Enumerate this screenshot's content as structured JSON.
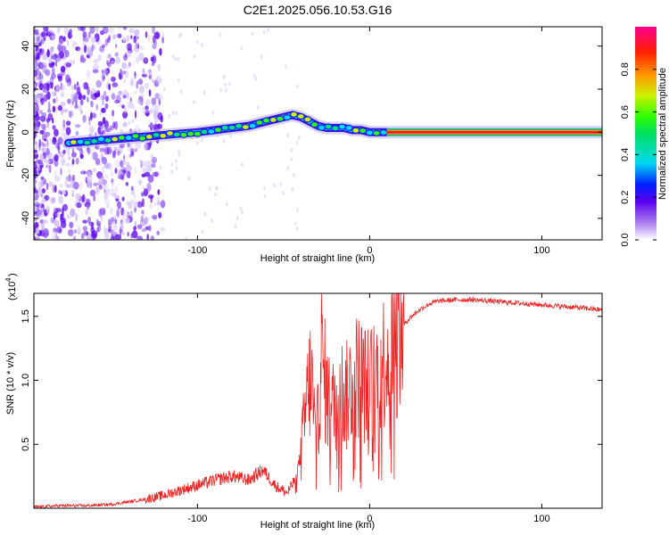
{
  "title": "C2E1.2025.056.10.53.G16",
  "chart_data": [
    {
      "type": "heatmap",
      "xlabel": "Height of straight line (km)",
      "ylabel": "Frequency (Hz)",
      "xlim": [
        -195,
        135
      ],
      "ylim": [
        -50,
        49
      ],
      "xticks": [
        -100,
        0,
        100
      ],
      "yticks": [
        -40,
        -20,
        0,
        20,
        40
      ],
      "colorbar": {
        "label": "Normalized spectral amplitude",
        "range": [
          0,
          1
        ],
        "ticks": [
          0.0,
          0.2,
          0.4,
          0.6,
          0.8
        ]
      },
      "track": {
        "x": [
          -175,
          -160,
          -145,
          -130,
          -115,
          -100,
          -90,
          -80,
          -70,
          -60,
          -55,
          -50,
          -45,
          -40,
          -35,
          -30,
          -25,
          -20,
          -15,
          -10,
          -5,
          0,
          5,
          10,
          135
        ],
        "y": [
          -5,
          -4,
          -3,
          -2,
          -1,
          0,
          1,
          2,
          3,
          5,
          6,
          7,
          8,
          7,
          5,
          3,
          2,
          2,
          2,
          1,
          1,
          0,
          0,
          0,
          0
        ]
      }
    },
    {
      "type": "line",
      "xlabel": "Height of straight line (km)",
      "ylabel": "SNR (10 * v/v)",
      "scale_label": "(x10",
      "scale_exponent": "4",
      "xlim": [
        -195,
        135
      ],
      "ylim": [
        0,
        1.68
      ],
      "xticks": [
        -100,
        0,
        100
      ],
      "yticks": [
        0.5,
        1.0,
        1.5
      ],
      "ytick_labels": [
        "0.5",
        "1.0",
        "1.5"
      ],
      "series": [
        {
          "color": "#ee2222",
          "x": [
            -195,
            -180,
            -165,
            -150,
            -140,
            -130,
            -120,
            -110,
            -100,
            -90,
            -80,
            -70,
            -62,
            -55,
            -48,
            -44,
            -40,
            -37,
            -34,
            -31,
            -28,
            -25,
            -22,
            -18,
            -14,
            -10,
            -6,
            -2,
            2,
            6,
            10,
            14,
            18,
            22,
            26,
            30,
            35,
            40,
            50,
            60,
            70,
            80,
            90,
            100,
            110,
            120,
            135
          ],
          "y": [
            0.01,
            0.02,
            0.02,
            0.03,
            0.05,
            0.07,
            0.1,
            0.14,
            0.18,
            0.22,
            0.25,
            0.22,
            0.3,
            0.18,
            0.12,
            0.2,
            0.4,
            0.8,
            1.05,
            0.45,
            1.2,
            0.9,
            0.75,
            0.95,
            0.85,
            1.0,
            1.05,
            0.95,
            0.98,
            1.1,
            1.2,
            1.28,
            1.4,
            1.47,
            1.52,
            1.56,
            1.6,
            1.62,
            1.63,
            1.63,
            1.62,
            1.61,
            1.6,
            1.59,
            1.58,
            1.57,
            1.55
          ]
        }
      ]
    }
  ]
}
